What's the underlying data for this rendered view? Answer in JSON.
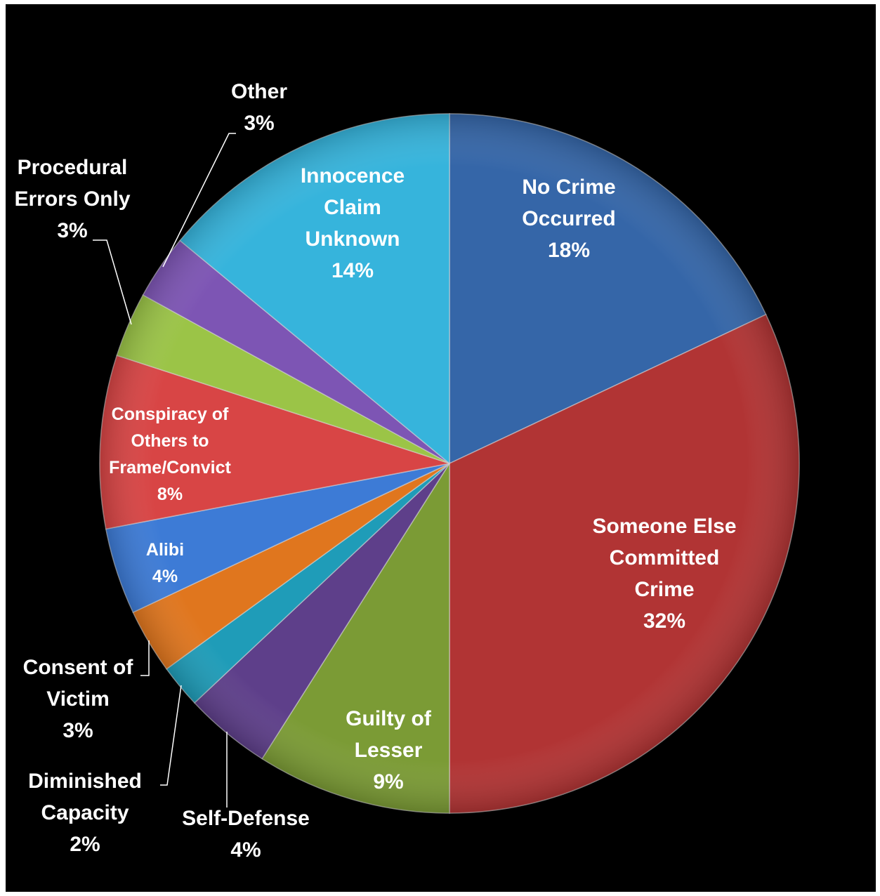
{
  "chart_data": {
    "type": "pie",
    "title": "",
    "slices": [
      {
        "key": "no_crime",
        "label_lines": [
          "No Crime",
          "Occurred"
        ],
        "value": 18,
        "value_label": "18%",
        "color": "#3566a8"
      },
      {
        "key": "someone_else",
        "label_lines": [
          "Someone Else",
          "Committed",
          "Crime"
        ],
        "value": 32,
        "value_label": "32%",
        "color": "#b13434"
      },
      {
        "key": "guilty_lesser",
        "label_lines": [
          "Guilty of",
          "Lesser"
        ],
        "value": 9,
        "value_label": "9%",
        "color": "#7b9b35"
      },
      {
        "key": "self_defense",
        "label_lines": [
          "Self-Defense"
        ],
        "value": 4,
        "value_label": "4%",
        "color": "#5e3f8a"
      },
      {
        "key": "diminished",
        "label_lines": [
          "Diminished",
          "Capacity"
        ],
        "value": 2,
        "value_label": "2%",
        "color": "#1f9cb8"
      },
      {
        "key": "consent",
        "label_lines": [
          "Consent of",
          "Victim"
        ],
        "value": 3,
        "value_label": "3%",
        "color": "#e0761e"
      },
      {
        "key": "alibi",
        "label_lines": [
          "Alibi"
        ],
        "value": 4,
        "value_label": "4%",
        "color": "#3d7bd6"
      },
      {
        "key": "conspiracy",
        "label_lines": [
          "Conspiracy of",
          "Others to",
          "Frame/Convict"
        ],
        "value": 8,
        "value_label": "8%",
        "color": "#d84545"
      },
      {
        "key": "procedural",
        "label_lines": [
          "Procedural",
          "Errors Only"
        ],
        "value": 3,
        "value_label": "3%",
        "color": "#9bc447"
      },
      {
        "key": "other",
        "label_lines": [
          "Other"
        ],
        "value": 3,
        "value_label": "3%",
        "color": "#7d55b4"
      },
      {
        "key": "innocence_unknown",
        "label_lines": [
          "Innocence",
          "Claim",
          "Unknown"
        ],
        "value": 14,
        "value_label": "14%",
        "color": "#36b4dc"
      }
    ],
    "legend": "none",
    "data_labels": "category and percentage"
  }
}
